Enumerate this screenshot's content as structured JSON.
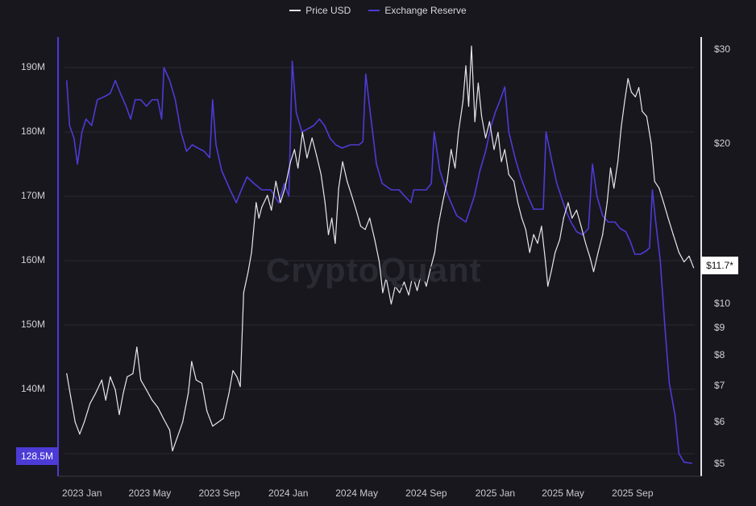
{
  "legend": {
    "price_label": "Price USD",
    "reserve_label": "Exchange Reserve"
  },
  "watermark": "CryptoQuant",
  "badges": {
    "reserve_current": "128.5M",
    "price_current": "$11.7*"
  },
  "colors": {
    "background": "#18171d",
    "price": "#e6e6ec",
    "reserve": "#4d3bd6",
    "grid": "#2a2930"
  },
  "chart_data": {
    "type": "line",
    "title": "",
    "grid": true,
    "legend_position": "top-center",
    "x_ticks": [
      "2023 Jan",
      "2023 May",
      "2023 Sep",
      "2024 Jan",
      "2024 May",
      "2024 Sep",
      "2025 Jan",
      "2025 May",
      "2025 Sep"
    ],
    "x_range": [
      "2022-12-01",
      "2025-12-20"
    ],
    "left_axis": {
      "series": "Exchange Reserve",
      "ylim": [
        126500000,
        194500000
      ],
      "ticks": [
        130000000,
        140000000,
        150000000,
        160000000,
        170000000,
        180000000,
        190000000
      ],
      "tick_labels": [
        "130M",
        "140M",
        "150M",
        "160M",
        "170M",
        "180M",
        "190M"
      ]
    },
    "right_axis": {
      "series": "Price USD",
      "scale": "log",
      "ylim": [
        4.75,
        31.5
      ],
      "ticks": [
        5,
        6,
        7,
        8,
        9,
        10,
        20,
        30
      ],
      "tick_labels": [
        "$5",
        "$6",
        "$7",
        "$8",
        "$9",
        "$10",
        "$20",
        "$30"
      ]
    },
    "series": [
      {
        "name": "Exchange Reserve",
        "axis": "left",
        "points": [
          [
            "2022-12-05",
            188
          ],
          [
            "2022-12-10",
            181
          ],
          [
            "2022-12-18",
            179
          ],
          [
            "2022-12-24",
            175
          ],
          [
            "2023-01-01",
            180
          ],
          [
            "2023-01-08",
            182
          ],
          [
            "2023-01-18",
            181
          ],
          [
            "2023-01-28",
            185
          ],
          [
            "2023-02-10",
            185.5
          ],
          [
            "2023-02-20",
            186
          ],
          [
            "2023-03-01",
            188
          ],
          [
            "2023-03-10",
            186
          ],
          [
            "2023-03-20",
            184
          ],
          [
            "2023-03-28",
            182
          ],
          [
            "2023-04-05",
            185
          ],
          [
            "2023-04-15",
            185
          ],
          [
            "2023-04-25",
            184
          ],
          [
            "2023-05-05",
            185
          ],
          [
            "2023-05-15",
            185
          ],
          [
            "2023-05-22",
            182
          ],
          [
            "2023-05-26",
            190
          ],
          [
            "2023-06-05",
            188
          ],
          [
            "2023-06-15",
            185
          ],
          [
            "2023-06-25",
            180
          ],
          [
            "2023-07-05",
            177
          ],
          [
            "2023-07-15",
            178
          ],
          [
            "2023-07-25",
            177.5
          ],
          [
            "2023-08-05",
            177
          ],
          [
            "2023-08-15",
            176
          ],
          [
            "2023-08-20",
            185
          ],
          [
            "2023-08-26",
            178
          ],
          [
            "2023-09-05",
            174
          ],
          [
            "2023-09-20",
            171
          ],
          [
            "2023-10-01",
            169
          ],
          [
            "2023-10-10",
            171
          ],
          [
            "2023-10-20",
            173
          ],
          [
            "2023-11-01",
            172
          ],
          [
            "2023-11-15",
            171
          ],
          [
            "2023-12-01",
            171
          ],
          [
            "2023-12-15",
            169
          ],
          [
            "2023-12-25",
            172
          ],
          [
            "2024-01-02",
            170
          ],
          [
            "2024-01-08",
            191
          ],
          [
            "2024-01-15",
            183
          ],
          [
            "2024-01-25",
            180
          ],
          [
            "2024-02-05",
            180.5
          ],
          [
            "2024-02-15",
            181
          ],
          [
            "2024-02-25",
            182
          ],
          [
            "2024-03-05",
            181
          ],
          [
            "2024-03-15",
            179
          ],
          [
            "2024-03-25",
            178
          ],
          [
            "2024-04-05",
            177.5
          ],
          [
            "2024-04-20",
            178
          ],
          [
            "2024-05-05",
            178
          ],
          [
            "2024-05-12",
            178.5
          ],
          [
            "2024-05-17",
            189
          ],
          [
            "2024-05-25",
            183
          ],
          [
            "2024-06-05",
            175
          ],
          [
            "2024-06-15",
            172
          ],
          [
            "2024-07-01",
            171
          ],
          [
            "2024-07-15",
            171
          ],
          [
            "2024-07-25",
            170
          ],
          [
            "2024-08-05",
            169
          ],
          [
            "2024-08-10",
            171
          ],
          [
            "2024-08-20",
            171
          ],
          [
            "2024-09-01",
            171
          ],
          [
            "2024-09-10",
            172
          ],
          [
            "2024-09-15",
            180
          ],
          [
            "2024-09-25",
            174
          ],
          [
            "2024-10-10",
            170
          ],
          [
            "2024-10-25",
            167
          ],
          [
            "2024-11-10",
            166
          ],
          [
            "2024-11-25",
            170
          ],
          [
            "2024-12-05",
            174
          ],
          [
            "2024-12-15",
            177
          ],
          [
            "2024-12-25",
            181
          ],
          [
            "2025-01-01",
            183
          ],
          [
            "2025-01-10",
            185
          ],
          [
            "2025-01-18",
            187
          ],
          [
            "2025-01-25",
            180
          ],
          [
            "2025-02-05",
            176
          ],
          [
            "2025-02-15",
            173
          ],
          [
            "2025-02-28",
            170
          ],
          [
            "2025-03-10",
            168
          ],
          [
            "2025-03-20",
            168
          ],
          [
            "2025-03-27",
            168
          ],
          [
            "2025-04-01",
            180
          ],
          [
            "2025-04-10",
            176
          ],
          [
            "2025-04-20",
            172
          ],
          [
            "2025-05-05",
            168
          ],
          [
            "2025-05-15",
            166
          ],
          [
            "2025-05-25",
            164.5
          ],
          [
            "2025-06-05",
            164
          ],
          [
            "2025-06-15",
            165
          ],
          [
            "2025-06-22",
            175
          ],
          [
            "2025-06-30",
            170
          ],
          [
            "2025-07-10",
            167
          ],
          [
            "2025-07-20",
            166
          ],
          [
            "2025-08-01",
            166
          ],
          [
            "2025-08-10",
            165
          ],
          [
            "2025-08-20",
            164.5
          ],
          [
            "2025-08-28",
            163
          ],
          [
            "2025-09-05",
            161
          ],
          [
            "2025-09-15",
            161
          ],
          [
            "2025-09-25",
            161.5
          ],
          [
            "2025-10-01",
            162
          ],
          [
            "2025-10-06",
            171
          ],
          [
            "2025-10-12",
            166
          ],
          [
            "2025-10-20",
            160
          ],
          [
            "2025-10-28",
            150
          ],
          [
            "2025-11-05",
            141
          ],
          [
            "2025-11-15",
            136
          ],
          [
            "2025-11-22",
            130
          ],
          [
            "2025-12-01",
            128.7
          ],
          [
            "2025-12-15",
            128.5
          ]
        ]
      },
      {
        "name": "Price USD",
        "axis": "right",
        "points": [
          [
            "2022-12-05",
            7.4
          ],
          [
            "2022-12-12",
            6.7
          ],
          [
            "2022-12-20",
            6.0
          ],
          [
            "2022-12-28",
            5.7
          ],
          [
            "2023-01-05",
            6.0
          ],
          [
            "2023-01-15",
            6.5
          ],
          [
            "2023-01-25",
            6.8
          ],
          [
            "2023-02-05",
            7.2
          ],
          [
            "2023-02-12",
            6.6
          ],
          [
            "2023-02-20",
            7.3
          ],
          [
            "2023-03-01",
            6.9
          ],
          [
            "2023-03-08",
            6.2
          ],
          [
            "2023-03-15",
            6.8
          ],
          [
            "2023-03-22",
            7.3
          ],
          [
            "2023-04-01",
            7.4
          ],
          [
            "2023-04-08",
            8.3
          ],
          [
            "2023-04-15",
            7.2
          ],
          [
            "2023-04-25",
            6.9
          ],
          [
            "2023-05-05",
            6.6
          ],
          [
            "2023-05-15",
            6.4
          ],
          [
            "2023-05-25",
            6.1
          ],
          [
            "2023-06-05",
            5.8
          ],
          [
            "2023-06-10",
            5.3
          ],
          [
            "2023-06-18",
            5.6
          ],
          [
            "2023-06-28",
            6.0
          ],
          [
            "2023-07-08",
            6.8
          ],
          [
            "2023-07-14",
            7.8
          ],
          [
            "2023-07-22",
            7.2
          ],
          [
            "2023-08-01",
            7.1
          ],
          [
            "2023-08-10",
            6.3
          ],
          [
            "2023-08-20",
            5.9
          ],
          [
            "2023-08-30",
            6.0
          ],
          [
            "2023-09-08",
            6.1
          ],
          [
            "2023-09-18",
            6.8
          ],
          [
            "2023-09-25",
            7.5
          ],
          [
            "2023-10-02",
            7.3
          ],
          [
            "2023-10-08",
            7.0
          ],
          [
            "2023-10-14",
            10.5
          ],
          [
            "2023-10-22",
            11.5
          ],
          [
            "2023-10-28",
            12.5
          ],
          [
            "2023-11-05",
            15.5
          ],
          [
            "2023-11-10",
            14.5
          ],
          [
            "2023-11-15",
            15.2
          ],
          [
            "2023-11-25",
            16.0
          ],
          [
            "2023-12-02",
            15.0
          ],
          [
            "2023-12-10",
            17.0
          ],
          [
            "2023-12-18",
            15.5
          ],
          [
            "2023-12-26",
            16.5
          ],
          [
            "2024-01-05",
            18.5
          ],
          [
            "2024-01-12",
            19.5
          ],
          [
            "2024-01-18",
            18.0
          ],
          [
            "2024-01-26",
            21.0
          ],
          [
            "2024-02-03",
            18.8
          ],
          [
            "2024-02-12",
            20.5
          ],
          [
            "2024-02-20",
            19.0
          ],
          [
            "2024-02-28",
            17.5
          ],
          [
            "2024-03-06",
            15.5
          ],
          [
            "2024-03-12",
            13.5
          ],
          [
            "2024-03-18",
            14.5
          ],
          [
            "2024-03-24",
            13.0
          ],
          [
            "2024-03-30",
            16.5
          ],
          [
            "2024-04-06",
            18.5
          ],
          [
            "2024-04-14",
            17.0
          ],
          [
            "2024-04-22",
            16.0
          ],
          [
            "2024-04-30",
            15.0
          ],
          [
            "2024-05-08",
            14.0
          ],
          [
            "2024-05-16",
            13.8
          ],
          [
            "2024-05-24",
            14.5
          ],
          [
            "2024-06-02",
            13.2
          ],
          [
            "2024-06-10",
            12.0
          ],
          [
            "2024-06-16",
            10.5
          ],
          [
            "2024-06-22",
            11.2
          ],
          [
            "2024-07-01",
            10.0
          ],
          [
            "2024-07-08",
            10.8
          ],
          [
            "2024-07-16",
            10.5
          ],
          [
            "2024-07-24",
            11.0
          ],
          [
            "2024-08-01",
            10.4
          ],
          [
            "2024-08-08",
            11.3
          ],
          [
            "2024-08-16",
            10.6
          ],
          [
            "2024-08-24",
            11.5
          ],
          [
            "2024-09-01",
            10.8
          ],
          [
            "2024-09-08",
            11.6
          ],
          [
            "2024-09-16",
            12.5
          ],
          [
            "2024-09-22",
            14.0
          ],
          [
            "2024-09-30",
            15.5
          ],
          [
            "2024-10-08",
            17.0
          ],
          [
            "2024-10-15",
            19.5
          ],
          [
            "2024-10-22",
            18.0
          ],
          [
            "2024-10-28",
            21.0
          ],
          [
            "2024-11-05",
            24.0
          ],
          [
            "2024-11-10",
            28.0
          ],
          [
            "2024-11-15",
            23.5
          ],
          [
            "2024-11-20",
            30.5
          ],
          [
            "2024-11-26",
            22.0
          ],
          [
            "2024-12-02",
            26.0
          ],
          [
            "2024-12-08",
            22.5
          ],
          [
            "2024-12-15",
            20.5
          ],
          [
            "2024-12-22",
            22.0
          ],
          [
            "2024-12-30",
            19.5
          ],
          [
            "2025-01-06",
            21.0
          ],
          [
            "2025-01-12",
            18.5
          ],
          [
            "2025-01-18",
            19.5
          ],
          [
            "2025-01-25",
            17.5
          ],
          [
            "2025-02-03",
            17.0
          ],
          [
            "2025-02-10",
            15.5
          ],
          [
            "2025-02-17",
            14.5
          ],
          [
            "2025-02-24",
            13.8
          ],
          [
            "2025-03-03",
            12.5
          ],
          [
            "2025-03-10",
            13.5
          ],
          [
            "2025-03-17",
            13.0
          ],
          [
            "2025-03-24",
            14.0
          ],
          [
            "2025-03-31",
            12.0
          ],
          [
            "2025-04-04",
            10.8
          ],
          [
            "2025-04-10",
            11.5
          ],
          [
            "2025-04-17",
            12.5
          ],
          [
            "2025-04-25",
            13.2
          ],
          [
            "2025-05-02",
            14.5
          ],
          [
            "2025-05-10",
            15.5
          ],
          [
            "2025-05-17",
            14.5
          ],
          [
            "2025-05-25",
            15.0
          ],
          [
            "2025-06-02",
            14.0
          ],
          [
            "2025-06-10",
            13.0
          ],
          [
            "2025-06-18",
            12.2
          ],
          [
            "2025-06-24",
            11.5
          ],
          [
            "2025-07-02",
            12.5
          ],
          [
            "2025-07-10",
            13.5
          ],
          [
            "2025-07-18",
            15.5
          ],
          [
            "2025-07-24",
            18.0
          ],
          [
            "2025-07-30",
            16.5
          ],
          [
            "2025-08-06",
            18.5
          ],
          [
            "2025-08-12",
            21.5
          ],
          [
            "2025-08-18",
            24.0
          ],
          [
            "2025-08-24",
            26.5
          ],
          [
            "2025-08-30",
            25.0
          ],
          [
            "2025-09-06",
            24.5
          ],
          [
            "2025-09-12",
            25.5
          ],
          [
            "2025-09-18",
            23.0
          ],
          [
            "2025-09-26",
            22.5
          ],
          [
            "2025-10-04",
            20.0
          ],
          [
            "2025-10-10",
            17.0
          ],
          [
            "2025-10-18",
            16.5
          ],
          [
            "2025-10-26",
            15.5
          ],
          [
            "2025-11-03",
            14.5
          ],
          [
            "2025-11-12",
            13.5
          ],
          [
            "2025-11-22",
            12.5
          ],
          [
            "2025-12-01",
            12.0
          ],
          [
            "2025-12-10",
            12.3
          ],
          [
            "2025-12-18",
            11.7
          ]
        ]
      }
    ]
  }
}
